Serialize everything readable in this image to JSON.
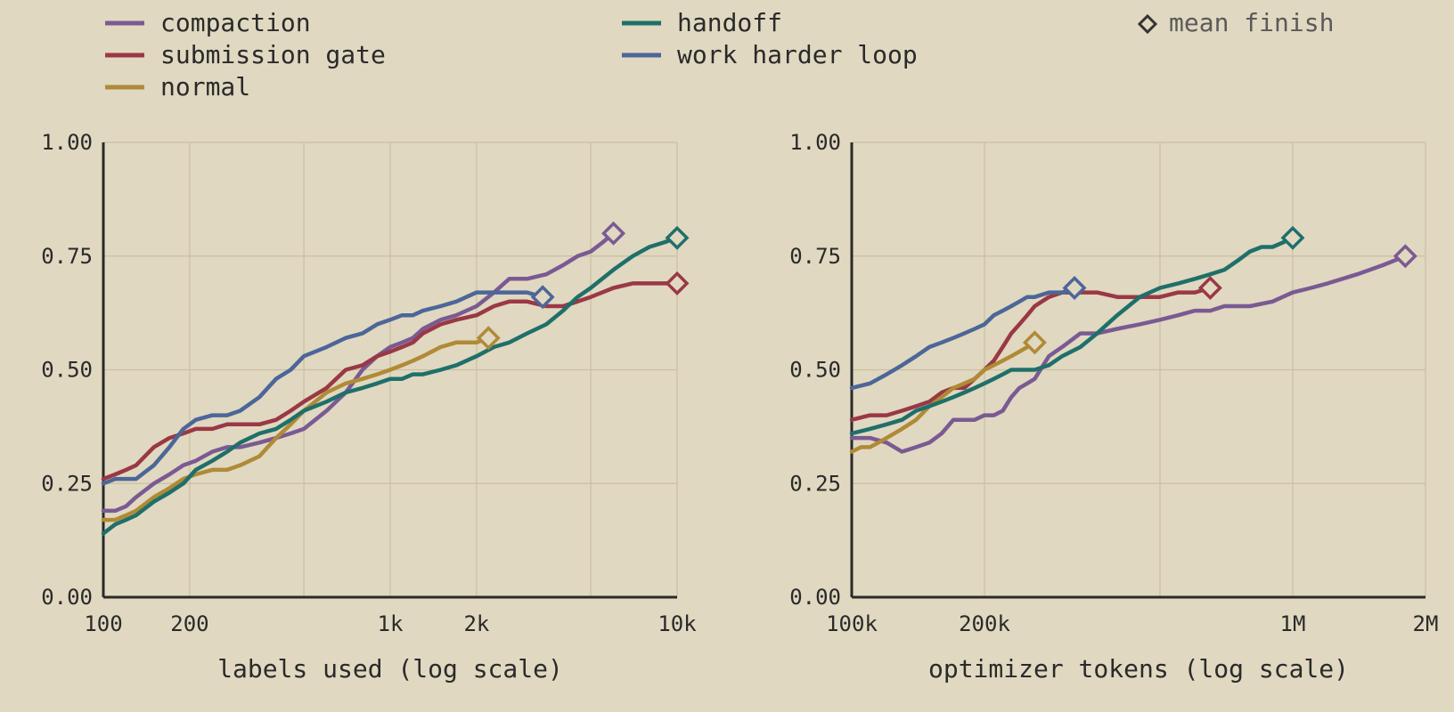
{
  "legend": {
    "items": [
      {
        "label": "compaction",
        "color": "#7a5a93"
      },
      {
        "label": "submission gate",
        "color": "#9a3845"
      },
      {
        "label": "normal",
        "color": "#b08a37"
      },
      {
        "label": "handoff",
        "color": "#1f6f6a"
      },
      {
        "label": "work harder loop",
        "color": "#4c6699"
      }
    ],
    "marker_label": "mean finish",
    "marker_color": "#333333"
  },
  "chart_data": [
    {
      "type": "line",
      "xlabel": "labels used (log scale)",
      "ylabel": "",
      "x_scale": "log",
      "xlim": [
        100,
        10000
      ],
      "ylim": [
        0,
        1
      ],
      "x_ticks": [
        100,
        200,
        500,
        1000,
        2000,
        5000,
        10000
      ],
      "x_tick_labels": [
        "100",
        "200",
        "",
        "1k",
        "2k",
        "",
        "10k"
      ],
      "y_ticks": [
        0,
        0.25,
        0.5,
        0.75,
        1.0
      ],
      "y_tick_labels": [
        "0.00",
        "0.25",
        "0.50",
        "0.75",
        "1.00"
      ],
      "grid": true,
      "series": [
        {
          "name": "compaction",
          "color": "#7a5a93",
          "x": [
            100,
            110,
            120,
            130,
            150,
            170,
            190,
            210,
            240,
            270,
            300,
            350,
            400,
            450,
            500,
            600,
            700,
            800,
            900,
            1000,
            1100,
            1200,
            1300,
            1500,
            1700,
            2000,
            2300,
            2600,
            3000,
            3500,
            4000,
            4500,
            5000,
            5500,
            6000
          ],
          "y": [
            0.19,
            0.19,
            0.2,
            0.22,
            0.25,
            0.27,
            0.29,
            0.3,
            0.32,
            0.33,
            0.33,
            0.34,
            0.35,
            0.36,
            0.37,
            0.41,
            0.45,
            0.5,
            0.53,
            0.55,
            0.56,
            0.57,
            0.59,
            0.61,
            0.62,
            0.64,
            0.67,
            0.7,
            0.7,
            0.71,
            0.73,
            0.75,
            0.76,
            0.78,
            0.8
          ]
        },
        {
          "name": "submission gate",
          "color": "#9a3845",
          "x": [
            100,
            110,
            120,
            130,
            150,
            170,
            190,
            210,
            240,
            270,
            300,
            350,
            400,
            450,
            500,
            600,
            700,
            800,
            900,
            1000,
            1100,
            1200,
            1300,
            1500,
            1700,
            2000,
            2300,
            2600,
            3000,
            3500,
            4000,
            4500,
            5000,
            6000,
            7000,
            8000,
            10000
          ],
          "y": [
            0.26,
            0.27,
            0.28,
            0.29,
            0.33,
            0.35,
            0.36,
            0.37,
            0.37,
            0.38,
            0.38,
            0.38,
            0.39,
            0.41,
            0.43,
            0.46,
            0.5,
            0.51,
            0.53,
            0.54,
            0.55,
            0.56,
            0.58,
            0.6,
            0.61,
            0.62,
            0.64,
            0.65,
            0.65,
            0.64,
            0.64,
            0.65,
            0.66,
            0.68,
            0.69,
            0.69,
            0.69
          ]
        },
        {
          "name": "normal",
          "color": "#b08a37",
          "x": [
            100,
            110,
            120,
            130,
            150,
            170,
            190,
            210,
            240,
            270,
            300,
            350,
            400,
            450,
            500,
            600,
            700,
            800,
            900,
            1000,
            1100,
            1200,
            1300,
            1500,
            1700,
            2000,
            2200
          ],
          "y": [
            0.17,
            0.17,
            0.18,
            0.19,
            0.22,
            0.24,
            0.26,
            0.27,
            0.28,
            0.28,
            0.29,
            0.31,
            0.35,
            0.38,
            0.41,
            0.45,
            0.47,
            0.48,
            0.49,
            0.5,
            0.51,
            0.52,
            0.53,
            0.55,
            0.56,
            0.56,
            0.57
          ]
        },
        {
          "name": "handoff",
          "color": "#1f6f6a",
          "x": [
            100,
            110,
            120,
            130,
            150,
            170,
            190,
            210,
            240,
            270,
            300,
            350,
            400,
            450,
            500,
            600,
            700,
            800,
            900,
            1000,
            1100,
            1200,
            1300,
            1500,
            1700,
            2000,
            2300,
            2600,
            3000,
            3500,
            4000,
            4500,
            5000,
            6000,
            7000,
            8000,
            9000,
            10000
          ],
          "y": [
            0.14,
            0.16,
            0.17,
            0.18,
            0.21,
            0.23,
            0.25,
            0.28,
            0.3,
            0.32,
            0.34,
            0.36,
            0.37,
            0.39,
            0.41,
            0.43,
            0.45,
            0.46,
            0.47,
            0.48,
            0.48,
            0.49,
            0.49,
            0.5,
            0.51,
            0.53,
            0.55,
            0.56,
            0.58,
            0.6,
            0.63,
            0.66,
            0.68,
            0.72,
            0.75,
            0.77,
            0.78,
            0.79
          ]
        },
        {
          "name": "work harder loop",
          "color": "#4c6699",
          "x": [
            100,
            110,
            120,
            130,
            150,
            170,
            190,
            210,
            240,
            270,
            300,
            350,
            400,
            450,
            500,
            600,
            700,
            800,
            900,
            1000,
            1100,
            1200,
            1300,
            1500,
            1700,
            2000,
            2300,
            2600,
            3000,
            3400
          ],
          "y": [
            0.25,
            0.26,
            0.26,
            0.26,
            0.29,
            0.33,
            0.37,
            0.39,
            0.4,
            0.4,
            0.41,
            0.44,
            0.48,
            0.5,
            0.53,
            0.55,
            0.57,
            0.58,
            0.6,
            0.61,
            0.62,
            0.62,
            0.63,
            0.64,
            0.65,
            0.67,
            0.67,
            0.67,
            0.67,
            0.66
          ]
        }
      ],
      "mean_finish": [
        {
          "series": "compaction",
          "x": 6000,
          "y": 0.8,
          "color": "#7a5a93"
        },
        {
          "series": "handoff",
          "x": 10000,
          "y": 0.79,
          "color": "#1f6f6a"
        },
        {
          "series": "submission gate",
          "x": 10000,
          "y": 0.69,
          "color": "#9a3845"
        },
        {
          "series": "work harder loop",
          "x": 3400,
          "y": 0.66,
          "color": "#4c6699"
        },
        {
          "series": "normal",
          "x": 2200,
          "y": 0.57,
          "color": "#b08a37"
        }
      ]
    },
    {
      "type": "line",
      "xlabel": "optimizer tokens (log scale)",
      "ylabel": "",
      "x_scale": "log",
      "xlim": [
        100000,
        2000000
      ],
      "ylim": [
        0,
        1
      ],
      "x_ticks": [
        100000,
        200000,
        500000,
        1000000,
        2000000
      ],
      "x_tick_labels": [
        "100k",
        "200k",
        "",
        "1M",
        "2M"
      ],
      "y_ticks": [
        0,
        0.25,
        0.5,
        0.75,
        1.0
      ],
      "y_tick_labels": [
        "0.00",
        "0.25",
        "0.50",
        "0.75",
        "1.00"
      ],
      "grid": true,
      "series": [
        {
          "name": "compaction",
          "color": "#7a5a93",
          "x": [
            100000,
            110000,
            120000,
            130000,
            140000,
            150000,
            160000,
            170000,
            180000,
            190000,
            200000,
            210000,
            220000,
            230000,
            240000,
            250000,
            260000,
            280000,
            300000,
            330000,
            360000,
            400000,
            450000,
            500000,
            550000,
            600000,
            650000,
            700000,
            750000,
            800000,
            900000,
            1000000,
            1100000,
            1200000,
            1400000,
            1600000,
            1800000
          ],
          "y": [
            0.35,
            0.35,
            0.34,
            0.32,
            0.33,
            0.34,
            0.36,
            0.39,
            0.39,
            0.39,
            0.4,
            0.4,
            0.41,
            0.44,
            0.46,
            0.47,
            0.48,
            0.53,
            0.55,
            0.58,
            0.58,
            0.59,
            0.6,
            0.61,
            0.62,
            0.63,
            0.63,
            0.64,
            0.64,
            0.64,
            0.65,
            0.67,
            0.68,
            0.69,
            0.71,
            0.73,
            0.75
          ]
        },
        {
          "name": "submission gate",
          "color": "#9a3845",
          "x": [
            100000,
            110000,
            120000,
            130000,
            140000,
            150000,
            160000,
            170000,
            180000,
            190000,
            200000,
            210000,
            220000,
            230000,
            240000,
            250000,
            260000,
            280000,
            300000,
            330000,
            360000,
            400000,
            450000,
            500000,
            550000,
            600000,
            650000
          ],
          "y": [
            0.39,
            0.4,
            0.4,
            0.41,
            0.42,
            0.43,
            0.45,
            0.46,
            0.46,
            0.48,
            0.5,
            0.52,
            0.55,
            0.58,
            0.6,
            0.62,
            0.64,
            0.66,
            0.67,
            0.67,
            0.67,
            0.66,
            0.66,
            0.66,
            0.67,
            0.67,
            0.68
          ]
        },
        {
          "name": "normal",
          "color": "#b08a37",
          "x": [
            100000,
            105000,
            110000,
            115000,
            120000,
            130000,
            140000,
            150000,
            160000,
            170000,
            180000,
            190000,
            200000,
            210000,
            220000,
            230000,
            240000,
            250000,
            260000
          ],
          "y": [
            0.32,
            0.33,
            0.33,
            0.34,
            0.35,
            0.37,
            0.39,
            0.42,
            0.44,
            0.46,
            0.47,
            0.48,
            0.5,
            0.51,
            0.52,
            0.53,
            0.54,
            0.55,
            0.56
          ]
        },
        {
          "name": "handoff",
          "color": "#1f6f6a",
          "x": [
            100000,
            110000,
            120000,
            130000,
            140000,
            150000,
            160000,
            170000,
            180000,
            190000,
            200000,
            210000,
            220000,
            230000,
            240000,
            250000,
            260000,
            280000,
            300000,
            330000,
            360000,
            400000,
            450000,
            500000,
            550000,
            600000,
            650000,
            700000,
            750000,
            800000,
            850000,
            900000,
            950000,
            1000000
          ],
          "y": [
            0.36,
            0.37,
            0.38,
            0.39,
            0.41,
            0.42,
            0.43,
            0.44,
            0.45,
            0.46,
            0.47,
            0.48,
            0.49,
            0.5,
            0.5,
            0.5,
            0.5,
            0.51,
            0.53,
            0.55,
            0.58,
            0.62,
            0.66,
            0.68,
            0.69,
            0.7,
            0.71,
            0.72,
            0.74,
            0.76,
            0.77,
            0.77,
            0.78,
            0.79
          ]
        },
        {
          "name": "work harder loop",
          "color": "#4c6699",
          "x": [
            100000,
            110000,
            120000,
            130000,
            140000,
            150000,
            160000,
            170000,
            180000,
            190000,
            200000,
            210000,
            220000,
            230000,
            240000,
            250000,
            260000,
            280000,
            300000,
            320000
          ],
          "y": [
            0.46,
            0.47,
            0.49,
            0.51,
            0.53,
            0.55,
            0.56,
            0.57,
            0.58,
            0.59,
            0.6,
            0.62,
            0.63,
            0.64,
            0.65,
            0.66,
            0.66,
            0.67,
            0.67,
            0.68
          ]
        }
      ],
      "mean_finish": [
        {
          "series": "work harder loop",
          "x": 320000,
          "y": 0.68,
          "color": "#4c6699"
        },
        {
          "series": "normal",
          "x": 260000,
          "y": 0.56,
          "color": "#b08a37"
        },
        {
          "series": "submission gate",
          "x": 650000,
          "y": 0.68,
          "color": "#9a3845"
        },
        {
          "series": "handoff",
          "x": 1000000,
          "y": 0.79,
          "color": "#1f6f6a"
        },
        {
          "series": "compaction",
          "x": 1800000,
          "y": 0.75,
          "color": "#7a5a93"
        }
      ]
    }
  ]
}
